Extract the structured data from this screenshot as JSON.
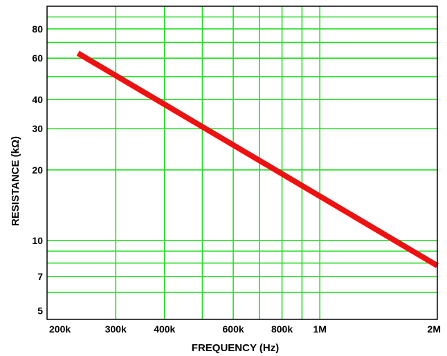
{
  "chart_data": {
    "type": "line",
    "xlabel": "FREQUENCY (Hz)",
    "ylabel": "RESISTANCE (kΩ)",
    "x_scale": "log",
    "y_scale": "log",
    "xlim": [
      200000,
      2000000
    ],
    "ylim": [
      4.6,
      100
    ],
    "grid": true,
    "colors": {
      "line": "#ee1111",
      "grid": "#22dd22",
      "frame": "#000000"
    },
    "x_gridlines": [
      300000,
      400000,
      500000,
      600000,
      700000,
      800000,
      900000,
      1000000
    ],
    "y_gridlines": [
      6,
      7,
      8,
      9,
      10,
      20,
      30,
      40,
      50,
      60,
      70,
      80,
      90
    ],
    "x_ticks": [
      {
        "value": 200000,
        "label": "200k"
      },
      {
        "value": 300000,
        "label": "300k"
      },
      {
        "value": 400000,
        "label": "400k"
      },
      {
        "value": 600000,
        "label": "600k"
      },
      {
        "value": 800000,
        "label": "800k"
      },
      {
        "value": 1000000,
        "label": "1M"
      },
      {
        "value": 2000000,
        "label": "2M"
      }
    ],
    "y_ticks": [
      {
        "value": 5,
        "label": "5"
      },
      {
        "value": 7,
        "label": "7"
      },
      {
        "value": 10,
        "label": "10"
      },
      {
        "value": 20,
        "label": "20"
      },
      {
        "value": 30,
        "label": "30"
      },
      {
        "value": 40,
        "label": "40"
      },
      {
        "value": 60,
        "label": "60"
      },
      {
        "value": 80,
        "label": "80"
      }
    ],
    "series": [
      {
        "x": [
          240000,
          2000000
        ],
        "y": [
          63,
          7.8
        ]
      }
    ]
  }
}
